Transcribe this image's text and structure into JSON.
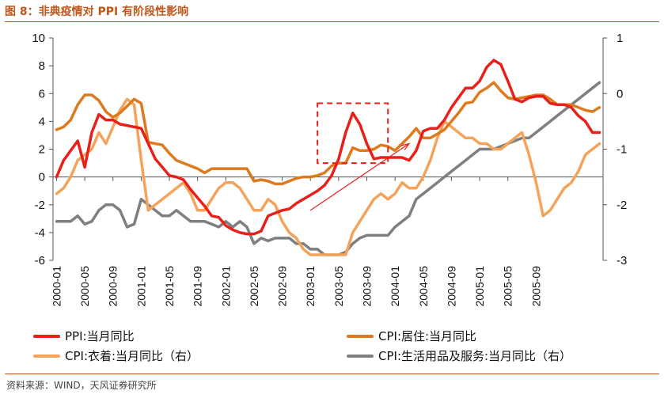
{
  "header": {
    "title": "图 8：非典疫情对 PPI 有阶段性影响"
  },
  "footer": {
    "source": "资料来源：WIND，天风证券研究所"
  },
  "colors": {
    "ppi": "#e8201a",
    "housing": "#dd7a1e",
    "clothing": "#f5a35a",
    "services": "#7f7f7f",
    "accent": "#c0561a"
  },
  "chart_data": {
    "type": "line",
    "start": "2000-01",
    "x_tick_labels": [
      "2000-01",
      "2000-05",
      "2000-09",
      "2001-01",
      "2001-05",
      "2001-09",
      "2002-01",
      "2002-05",
      "2002-09",
      "2003-01",
      "2003-05",
      "2003-09",
      "2004-01",
      "2004-05",
      "2004-09",
      "2005-01",
      "2005-05",
      "2005-09"
    ],
    "y_left": {
      "min": -6,
      "max": 10,
      "ticks": [
        "10",
        "8",
        "6",
        "4",
        "2",
        "0",
        "-2",
        "-4",
        "-6"
      ]
    },
    "y_right": {
      "min": -3,
      "max": 1,
      "ticks": [
        "1",
        "0",
        "-1",
        "-2",
        "-3"
      ]
    },
    "series": [
      {
        "name": "PPI:当月同比",
        "axis": "left",
        "color": "#e8201a",
        "values": [
          0,
          1.2,
          1.9,
          2.6,
          0.7,
          3.2,
          4.5,
          4.1,
          4.1,
          3.8,
          3.7,
          3.6,
          3.5,
          2.4,
          1.3,
          0.7,
          0.1,
          0,
          -0.2,
          -0.9,
          -1.5,
          -2.1,
          -2.8,
          -2.9,
          -3.5,
          -3.8,
          -4.0,
          -4.1,
          -4.1,
          -3.9,
          -2.8,
          -2.6,
          -2.4,
          -2.3,
          -1.9,
          -1.6,
          -1.3,
          -1.0,
          -0.6,
          0.1,
          1.3,
          3.2,
          4.6,
          3.8,
          2.4,
          1.3,
          1.4,
          1.4,
          1.4,
          1.4,
          1.2,
          1.9,
          3.3,
          3.5,
          3.5,
          4.1,
          5.0,
          5.7,
          6.4,
          6.4,
          6.9,
          7.9,
          8.4,
          8.1,
          6.9,
          5.6,
          5.4,
          5.7,
          5.8,
          5.8,
          5.3,
          5.2,
          5.2,
          5.0,
          4.4,
          4.0,
          3.2,
          3.2
        ]
      },
      {
        "name": "CPI:居住:当月同比",
        "axis": "left",
        "color": "#dd7a1e",
        "values": [
          3.4,
          3.6,
          4.1,
          5.2,
          5.9,
          5.9,
          5.5,
          4.7,
          4.3,
          4.6,
          5.1,
          5.6,
          5.3,
          2.5,
          2.4,
          2.3,
          1.7,
          1.2,
          1.0,
          0.8,
          0.6,
          0.3,
          0.6,
          0.6,
          0.6,
          0.6,
          0.6,
          0.6,
          -0.3,
          -0.2,
          -0.3,
          -0.5,
          -0.5,
          -0.3,
          -0.1,
          0,
          0,
          0.1,
          0.3,
          0.8,
          1.0,
          1.0,
          2.1,
          1.9,
          1.9,
          2.0,
          2.3,
          2.2,
          1.9,
          2.4,
          2.9,
          3.5,
          2.8,
          2.8,
          3.1,
          3.4,
          4.0,
          4.6,
          5.3,
          5.4,
          6.1,
          6.4,
          6.8,
          6.2,
          5.7,
          5.6,
          5.7,
          5.8,
          5.9,
          5.9,
          5.6,
          5.2,
          5.2,
          5.2,
          5.0,
          4.8,
          4.7,
          5.0
        ]
      },
      {
        "name": "CPI:衣着:当月同比（右）",
        "axis": "right",
        "color": "#f5a35a",
        "values": [
          -1.8,
          -1.7,
          -1.5,
          -1.2,
          -1.1,
          -1.0,
          -0.7,
          -0.9,
          -0.6,
          -0.3,
          -0.1,
          -0.2,
          -1.2,
          -2.1,
          -2.0,
          -1.9,
          -1.8,
          -1.7,
          -1.6,
          -1.8,
          -2.1,
          -2.1,
          -1.9,
          -1.7,
          -1.6,
          -1.6,
          -1.7,
          -1.9,
          -2.1,
          -2.1,
          -1.9,
          -2.0,
          -2.3,
          -2.5,
          -2.6,
          -2.8,
          -2.9,
          -2.9,
          -2.9,
          -2.9,
          -2.9,
          -2.9,
          -2.5,
          -2.3,
          -2.1,
          -1.9,
          -1.8,
          -1.9,
          -1.8,
          -1.6,
          -1.7,
          -1.7,
          -1.5,
          -1.2,
          -0.8,
          -0.5,
          -0.6,
          -0.7,
          -0.8,
          -0.8,
          -0.9,
          -0.9,
          -1.0,
          -1.0,
          -0.9,
          -0.8,
          -0.7,
          -1.1,
          -1.6,
          -2.2,
          -2.1,
          -1.9,
          -1.7,
          -1.6,
          -1.4,
          -1.1,
          -1.0,
          -0.9
        ]
      },
      {
        "name": "CPI:生活用品及服务:当月同比（右）",
        "axis": "right",
        "color": "#7f7f7f",
        "values": [
          -2.3,
          -2.3,
          -2.3,
          -2.2,
          -2.35,
          -2.3,
          -2.1,
          -2.0,
          -2.0,
          -2.1,
          -2.4,
          -2.35,
          -1.9,
          -2.0,
          -2.1,
          -2.2,
          -2.2,
          -2.1,
          -2.2,
          -2.3,
          -2.3,
          -2.3,
          -2.35,
          -2.4,
          -2.3,
          -2.4,
          -2.3,
          -2.4,
          -2.7,
          -2.6,
          -2.65,
          -2.6,
          -2.6,
          -2.6,
          -2.7,
          -2.7,
          -2.8,
          -2.8,
          -2.9,
          -2.9,
          -2.9,
          -2.85,
          -2.7,
          -2.6,
          -2.55,
          -2.55,
          -2.55,
          -2.55,
          -2.4,
          -2.3,
          -2.2,
          -1.9,
          -1.8,
          -1.7,
          -1.6,
          -1.5,
          -1.4,
          -1.3,
          -1.2,
          -1.1,
          -1.0,
          -1.0,
          -1.0,
          -0.95,
          -0.9,
          -0.85,
          -0.8,
          -0.8,
          -0.7,
          -0.6,
          -0.5,
          -0.4,
          -0.3,
          -0.2,
          -0.1,
          0,
          0.1,
          0.2
        ]
      }
    ],
    "annotations": [
      {
        "type": "dashed-box",
        "from": "2003-02",
        "to": "2003-12",
        "y": [
          1,
          5.3
        ],
        "axis": "left",
        "color": "#e8201a"
      },
      {
        "type": "arrow",
        "from_month": "2003-01",
        "from_y": -2.4,
        "to_month": "2004-03",
        "to_y": 2.4,
        "axis": "left",
        "color": "#e8201a"
      }
    ],
    "legend": {
      "placement": "bottom"
    },
    "grid": false
  }
}
